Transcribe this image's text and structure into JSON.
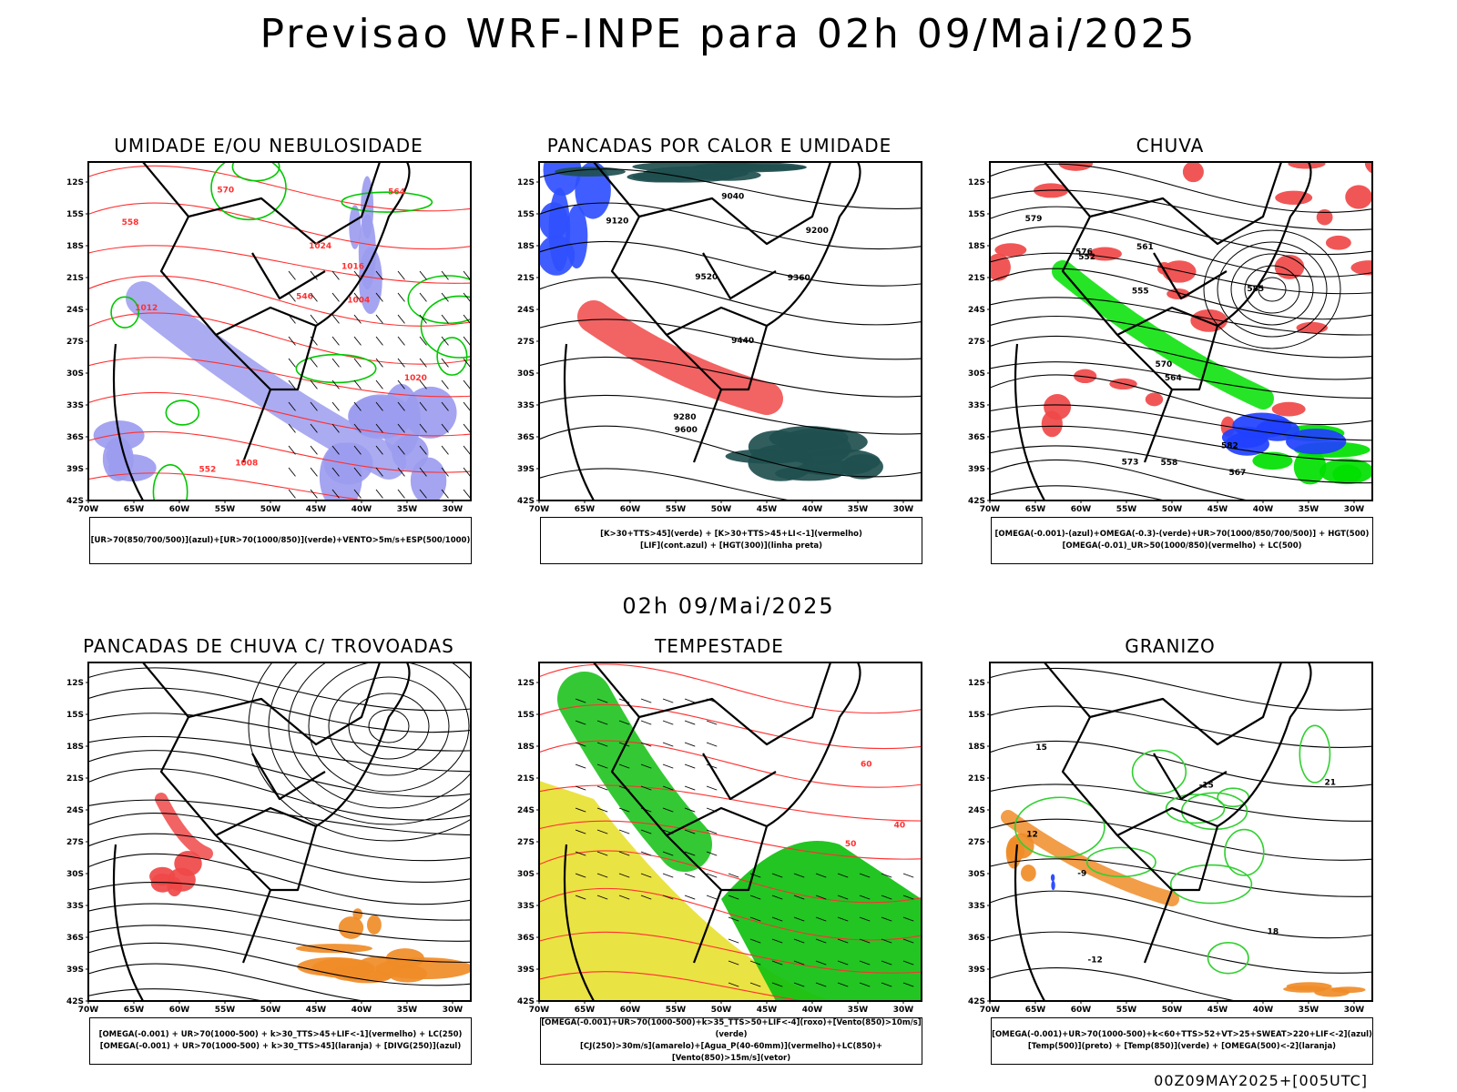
{
  "title": "Previsao WRF-INPE  para 02h 09/Mai/2025",
  "mid_time": "02h 09/Mai/2025",
  "footer": "00Z09MAY2025+[005UTC]",
  "axes": {
    "lat_ticks": [
      "12S",
      "15S",
      "18S",
      "21S",
      "24S",
      "27S",
      "30S",
      "33S",
      "36S",
      "39S",
      "42S"
    ],
    "lon_ticks": [
      "70W",
      "65W",
      "60W",
      "55W",
      "50W",
      "45W",
      "40W",
      "35W",
      "30W"
    ]
  },
  "panels": [
    {
      "title": "UMIDADE E/OU NEBULOSIDADE",
      "legend": [
        "[UR>70(850/700/500)](azul)+[UR>70(1000/850)](verde)+VENTO>5m/s+ESP(500/1000)"
      ],
      "colors": {
        "fill_a": "#9c9cf0",
        "fill_b": "#00c800",
        "line_a": "#ff3030",
        "line_b": "#000000"
      },
      "contour_labels": [
        "1012",
        "1008",
        "1004",
        "1016",
        "1020",
        "1024",
        "570",
        "564",
        "558",
        "552",
        "546"
      ]
    },
    {
      "title": "PANCADAS POR CALOR E UMIDADE",
      "legend": [
        "[K>30+TTS>45](verde) + [K>30+TTS>45+LI<-1](vermelho)",
        "[LIF](cont.azul) + [HGT(300)](linha preta)"
      ],
      "colors": {
        "fill_a": "#1f4f4f",
        "fill_b": "#f04848",
        "line_a": "#2020ff",
        "line_b": "#000000"
      },
      "contour_labels": [
        "9600",
        "9520",
        "9440",
        "9360",
        "9280",
        "9200",
        "9120",
        "9040"
      ]
    },
    {
      "title": "CHUVA",
      "legend": [
        "[OMEGA(-0.001)-(azul)+OMEGA(-0.3)-(verde)+UR>70(1000/850/700/500)] + HGT(500)",
        "[OMEGA(-0.01)_UR>50(1000/850)(vermelho) + LC(500)"
      ],
      "colors": {
        "fill_a": "#f04848",
        "fill_b": "#00e000",
        "line_a": "#2040ff",
        "line_b": "#000000"
      },
      "contour_labels": [
        "585",
        "582",
        "579",
        "576",
        "573",
        "570",
        "567",
        "564",
        "561",
        "558",
        "555",
        "552"
      ]
    },
    {
      "title": "PANCADAS DE CHUVA C/ TROVOADAS",
      "legend": [
        "[OMEGA(-0.001) + UR>70(1000-500) + k>30_TTS>45+LIF<-1](vermelho) + LC(250)",
        "[OMEGA(-0.001) + UR>70(1000-500) + k>30_TTS>45](laranja) + [DIVG(250)](azul)"
      ],
      "colors": {
        "fill_a": "#f04848",
        "fill_b": "#f08c28",
        "line_a": "#2040ff",
        "line_b": "#000000"
      },
      "contour_labels": []
    },
    {
      "title": "TEMPESTADE",
      "legend": [
        "[OMEGA(-0.001)+UR>70(1000-500)+k>35_TTS>50+LIF<-4](roxo)+[Vento(850)>10m/s](verde)",
        "[CJ(250)>30m/s](amarelo)+[Agua_P(40-60mm)](vermelho)+LC(850)+[Vento(850)>15m/s](vetor)"
      ],
      "colors": {
        "fill_a": "#e8e030",
        "fill_b": "#10c010",
        "line_a": "#ff3030",
        "line_b": "#000000"
      },
      "contour_labels": [
        "40",
        "50",
        "60"
      ]
    },
    {
      "title": "GRANIZO",
      "legend": [
        "[OMEGA(-0.001)+UR>70(1000-500)+k<60+TTS>52+VT>25+SWEAT>220+LIF<-2](azul)",
        "[Temp(500)](preto) + [Temp(850)](verde) + [OMEGA(500)<-2](laranja)"
      ],
      "colors": {
        "fill_a": "#f08c28",
        "fill_b": "#2040ff",
        "line_a": "#30d030",
        "line_b": "#000000"
      },
      "contour_labels": [
        "-15",
        "-12",
        "-9",
        "12",
        "15",
        "18",
        "21"
      ]
    }
  ]
}
